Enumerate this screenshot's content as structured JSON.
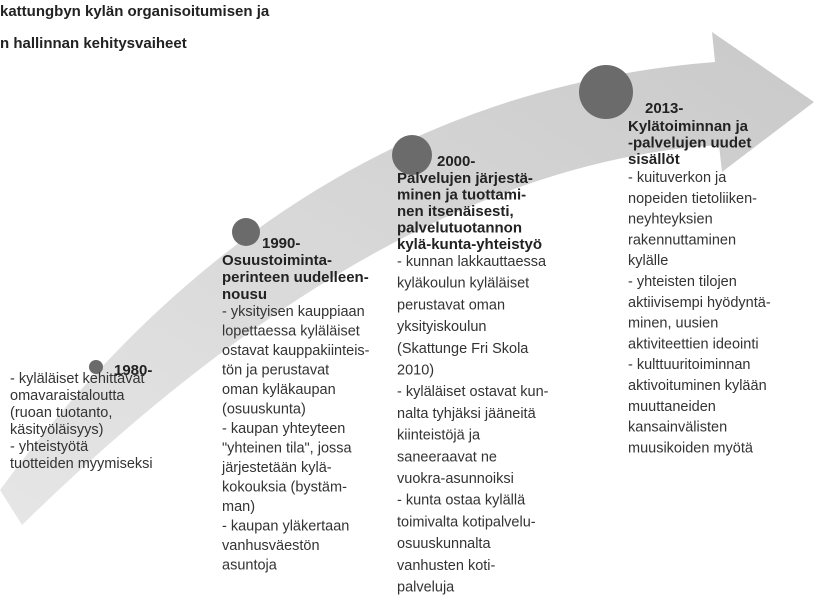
{
  "title": [
    "kattungbyn kylän organisoitumisen ja",
    "n hallinnan kehitysvaiheet"
  ],
  "stages": [
    {
      "year": "1980-",
      "heading": [],
      "body": [
        "- kyläläiset kehittävät",
        "omavaraistaloutta",
        "(ruoan tuotanto,",
        "käsityöläisyys)",
        "- yhteistyötä",
        "tuotteiden myymiseksi"
      ]
    },
    {
      "year": "1990-",
      "heading": [
        "Osuustoiminta-",
        "perinteen uudelleen-",
        "nousu"
      ],
      "body": [
        "- yksityisen kauppiaan",
        "lopettaessa kyläläiset",
        "ostavat kauppakiinteis-",
        "tön ja perustavat",
        "oman kyläkaupan",
        "(osuuskunta)",
        "- kaupan yhteyteen",
        "\"yhteinen tila\", jossa",
        "järjestetään kylä-",
        "kokouksia (bystäm-",
        "man)",
        "- kaupan yläkertaan",
        "vanhusväestön",
        "asuntoja"
      ]
    },
    {
      "year": "2000-",
      "heading": [
        "Palvelujen järjestä-",
        "minen ja tuottami-",
        "nen itsenäisesti,",
        "palvelutuotannon",
        "kylä-kunta-yhteistyö"
      ],
      "body": [
        "- kunnan lakkauttaessa",
        "kyläkoulun kyläläiset",
        "perustavat oman",
        "yksityiskoulun",
        "(Skattunge Fri Skola",
        "2010)",
        "- kyläläiset ostavat kun-",
        "nalta tyhjäksi jääneitä",
        "kiinteistöjä ja",
        "saneeraavat ne",
        "vuokra-asunnoiksi",
        "- kunta ostaa kylällä",
        "toimivalta kotipalvelu-",
        "osuuskunnalta",
        "vanhusten koti-",
        "palveluja"
      ]
    },
    {
      "year": "2013-",
      "heading": [
        "Kylätoiminnan ja",
        "-palvelujen uudet",
        "sisällöt"
      ],
      "body": [
        "- kuituverkon ja",
        "nopeiden tietoliiken-",
        "neyhteyksien",
        "rakennuttaminen",
        "kylälle",
        "- yhteisten tilojen",
        "aktiivisempi hyödyntä-",
        "minen, uusien",
        "aktiviteettien ideointi",
        "- kulttuuritoiminnan",
        "aktivoituminen kylään",
        "muuttaneiden",
        "kansainvälisten",
        "muusikoiden myötä"
      ]
    }
  ]
}
